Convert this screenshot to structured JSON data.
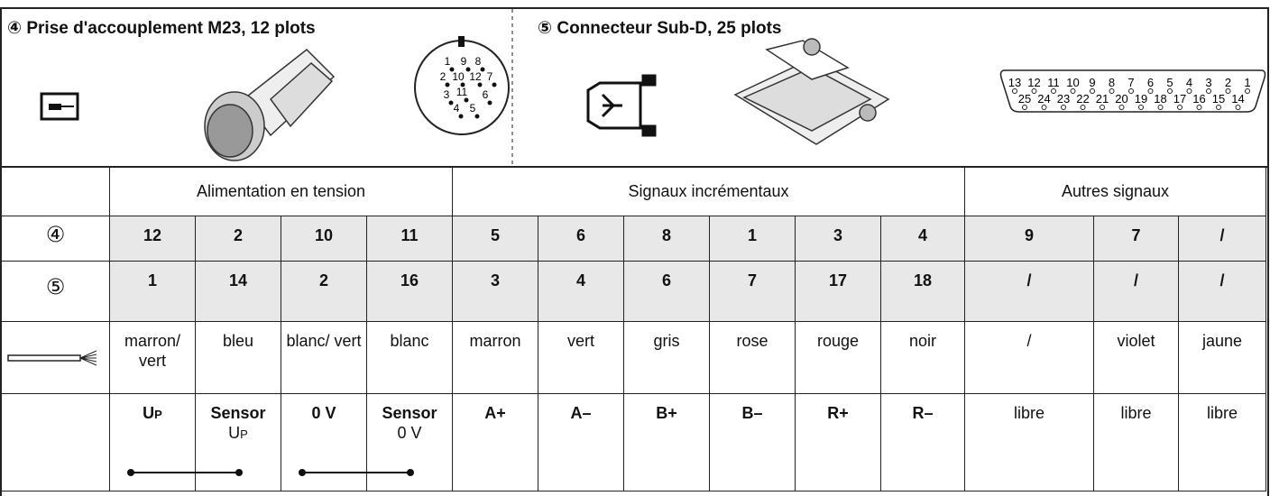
{
  "panel": {
    "left_title": "④ Prise d'accouplement M23, 12 plots",
    "right_title": "⑤ Connecteur Sub-D, 25 plots",
    "m23_pins": [
      "1",
      "9",
      "8",
      "2",
      "10",
      "12",
      "7",
      "3",
      "11",
      "6",
      "4",
      "5"
    ],
    "subd_top_pins": [
      "13",
      "12",
      "11",
      "10",
      "9",
      "8",
      "7",
      "6",
      "5",
      "4",
      "3",
      "2",
      "1"
    ],
    "subd_bottom_pins": [
      "25",
      "24",
      "23",
      "22",
      "21",
      "20",
      "19",
      "18",
      "17",
      "16",
      "15",
      "14"
    ]
  },
  "table": {
    "groups": [
      "Alimentation en tension",
      "Signaux incrémentaux",
      "Autres signaux"
    ],
    "row_labels": [
      "④",
      "⑤"
    ],
    "m23_row": [
      "12",
      "2",
      "10",
      "11",
      "5",
      "6",
      "8",
      "1",
      "3",
      "4",
      "9",
      "7",
      "/"
    ],
    "subd_row": [
      "1",
      "14",
      "2",
      "16",
      "3",
      "4",
      "6",
      "7",
      "17",
      "18",
      "/",
      "/",
      "/"
    ],
    "wire_colors": [
      "marron/ vert",
      "bleu",
      "blanc/ vert",
      "blanc",
      "marron",
      "vert",
      "gris",
      "rose",
      "rouge",
      "noir",
      "/",
      "violet",
      "jaune"
    ],
    "signals": [
      {
        "label": "U",
        "sub": "P"
      },
      {
        "label": "Sensor",
        "note": "U",
        "note_sub": "P"
      },
      {
        "label": "0 V"
      },
      {
        "label": "Sensor",
        "note": "0 V"
      },
      {
        "label": "A+"
      },
      {
        "label": "A–"
      },
      {
        "label": "B+"
      },
      {
        "label": "B–"
      },
      {
        "label": "R+"
      },
      {
        "label": "R–"
      },
      {
        "label": "libre"
      },
      {
        "label": "libre"
      },
      {
        "label": "libre"
      }
    ]
  }
}
